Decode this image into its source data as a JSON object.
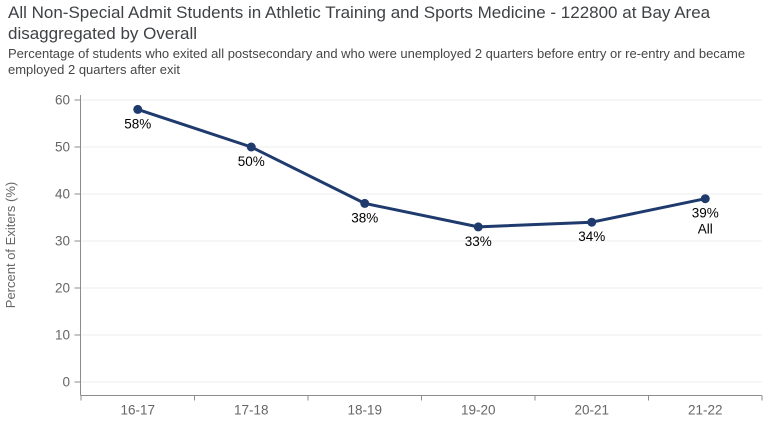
{
  "header": {
    "title": "All Non-Special Admit Students in Athletic Training and Sports Medicine - 122800 at Bay Area disaggregated by Overall",
    "subtitle": "Percentage of students who exited all postsecondary and who were unemployed 2 quarters before entry or re-entry and became employed 2 quarters after exit"
  },
  "chart_data": {
    "type": "line",
    "categories": [
      "16-17",
      "17-18",
      "18-19",
      "19-20",
      "20-21",
      "21-22"
    ],
    "series": [
      {
        "name": "All",
        "values": [
          58,
          50,
          38,
          33,
          34,
          39
        ]
      }
    ],
    "point_labels": [
      "58%",
      "50%",
      "38%",
      "33%",
      "34%",
      "39%"
    ],
    "last_point_sublabel": "All",
    "title": "",
    "xlabel": "",
    "ylabel": "Percent of Exiters (%)",
    "ylim": [
      0,
      62
    ],
    "yticks": [
      0,
      10,
      20,
      30,
      40,
      50,
      60
    ],
    "grid": true,
    "legend_position": "none",
    "colors": {
      "line": "#1f3a6d",
      "marker": "#1f3a6d",
      "grid": "#ececec",
      "axis": "#8c8c8c",
      "tick_label": "#666666",
      "axis_title": "#666666",
      "data_label": "#000000"
    }
  }
}
